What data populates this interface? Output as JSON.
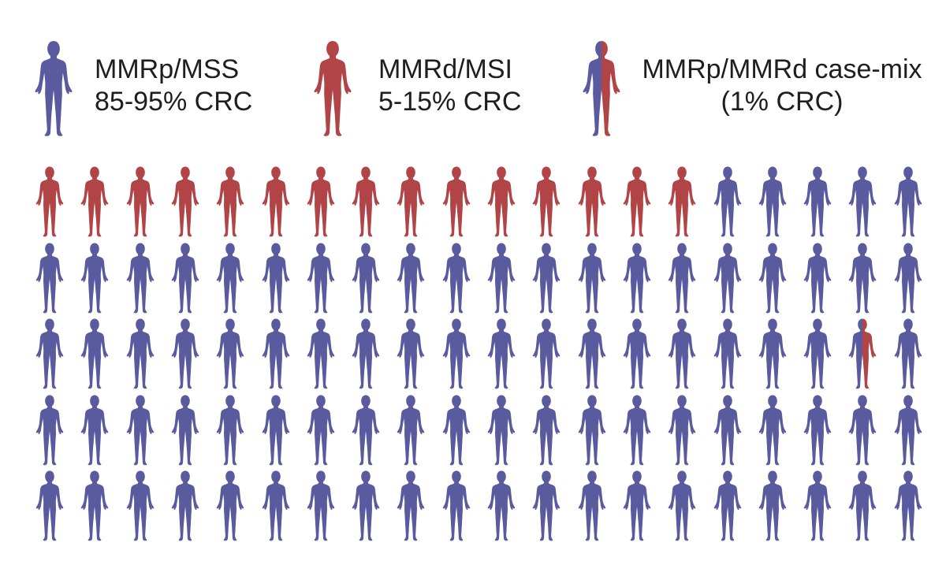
{
  "colors": {
    "mmrp": "#5a5b9e",
    "mmrd": "#b04447",
    "background": "#ffffff"
  },
  "legend": [
    {
      "id": "mmrp",
      "icon": "person-blue-icon",
      "line1": "MMRp/MSS",
      "line2": "85-95% CRC"
    },
    {
      "id": "mmrd",
      "icon": "person-red-icon",
      "line1": "MMRd/MSI",
      "line2": "5-15% CRC"
    },
    {
      "id": "mix",
      "icon": "person-half-blue-half-red-icon",
      "line1": "MMRp/MMRd case-mix",
      "line2": "(1% CRC)"
    }
  ],
  "grid": {
    "rows": 5,
    "columns": 20,
    "people": [
      [
        "mmrd",
        "mmrd",
        "mmrd",
        "mmrd",
        "mmrd",
        "mmrd",
        "mmrd",
        "mmrd",
        "mmrd",
        "mmrd",
        "mmrd",
        "mmrd",
        "mmrd",
        "mmrd",
        "mmrd",
        "mmrp",
        "mmrp",
        "mmrp",
        "mmrp",
        "mmrp"
      ],
      [
        "mmrp",
        "mmrp",
        "mmrp",
        "mmrp",
        "mmrp",
        "mmrp",
        "mmrp",
        "mmrp",
        "mmrp",
        "mmrp",
        "mmrp",
        "mmrp",
        "mmrp",
        "mmrp",
        "mmrp",
        "mmrp",
        "mmrp",
        "mmrp",
        "mmrp",
        "mmrp"
      ],
      [
        "mmrp",
        "mmrp",
        "mmrp",
        "mmrp",
        "mmrp",
        "mmrp",
        "mmrp",
        "mmrp",
        "mmrp",
        "mmrp",
        "mmrp",
        "mmrp",
        "mmrp",
        "mmrp",
        "mmrp",
        "mmrp",
        "mmrp",
        "mmrp",
        "mix",
        "mmrp"
      ],
      [
        "mmrp",
        "mmrp",
        "mmrp",
        "mmrp",
        "mmrp",
        "mmrp",
        "mmrp",
        "mmrp",
        "mmrp",
        "mmrp",
        "mmrp",
        "mmrp",
        "mmrp",
        "mmrp",
        "mmrp",
        "mmrp",
        "mmrp",
        "mmrp",
        "mmrp",
        "mmrp"
      ],
      [
        "mmrp",
        "mmrp",
        "mmrp",
        "mmrp",
        "mmrp",
        "mmrp",
        "mmrp",
        "mmrp",
        "mmrp",
        "mmrp",
        "mmrp",
        "mmrp",
        "mmrp",
        "mmrp",
        "mmrp",
        "mmrp",
        "mmrp",
        "mmrp",
        "mmrp",
        "mmrp"
      ]
    ]
  }
}
